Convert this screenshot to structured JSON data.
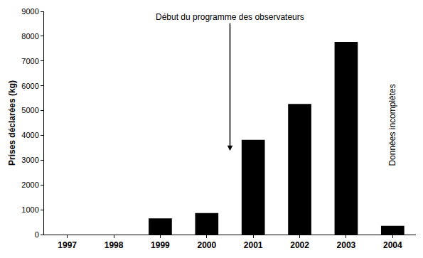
{
  "chart_data": {
    "type": "bar",
    "y_label": "Prises déclarées (kg)",
    "categories": [
      "1997",
      "1998",
      "1999",
      "2000",
      "2001",
      "2002",
      "2003",
      "2004"
    ],
    "values": [
      0,
      0,
      650,
      870,
      3820,
      5270,
      7770,
      350
    ],
    "color": "#000000",
    "ylim": [
      0,
      9000
    ],
    "yticks": [
      0,
      1000,
      2000,
      3000,
      4000,
      5000,
      6000,
      7000,
      8000,
      9000
    ],
    "grid": false,
    "annotations": [
      "Début du programme des observateurs",
      "Données incomplètes"
    ]
  }
}
